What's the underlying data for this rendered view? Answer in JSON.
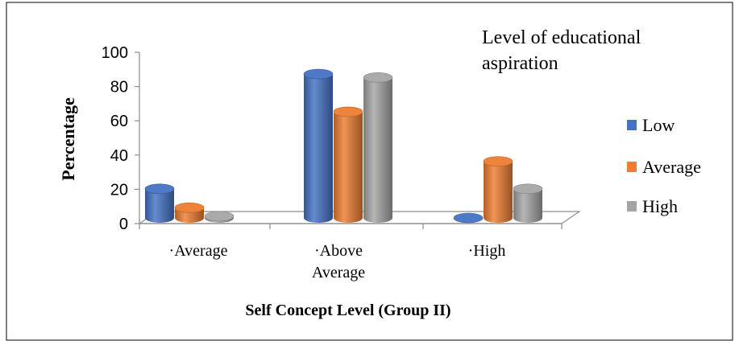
{
  "chart_data": {
    "type": "bar",
    "title": "Level of   educational aspiration",
    "title_lines": [
      "Level of   educational",
      "aspiration"
    ],
    "xlabel": "Self Concept Level (Group II)",
    "ylabel": "Percentage",
    "ylim": [
      0,
      100
    ],
    "yticks": [
      0,
      20,
      40,
      60,
      80,
      100
    ],
    "categories": [
      "·Average",
      "·Above Average",
      "·High"
    ],
    "category_lines": [
      [
        "·Average"
      ],
      [
        "·Above",
        "Average"
      ],
      [
        "·High"
      ]
    ],
    "series": [
      {
        "name": "Low",
        "values": [
          17,
          84,
          0
        ],
        "color": "#4472C4"
      },
      {
        "name": "Average",
        "values": [
          6,
          62,
          33
        ],
        "color": "#ED7D31"
      },
      {
        "name": "High",
        "values": [
          1,
          82,
          17
        ],
        "color": "#A5A5A5"
      }
    ],
    "legend_position": "right",
    "grid": false,
    "style": "3d-cylinder"
  }
}
